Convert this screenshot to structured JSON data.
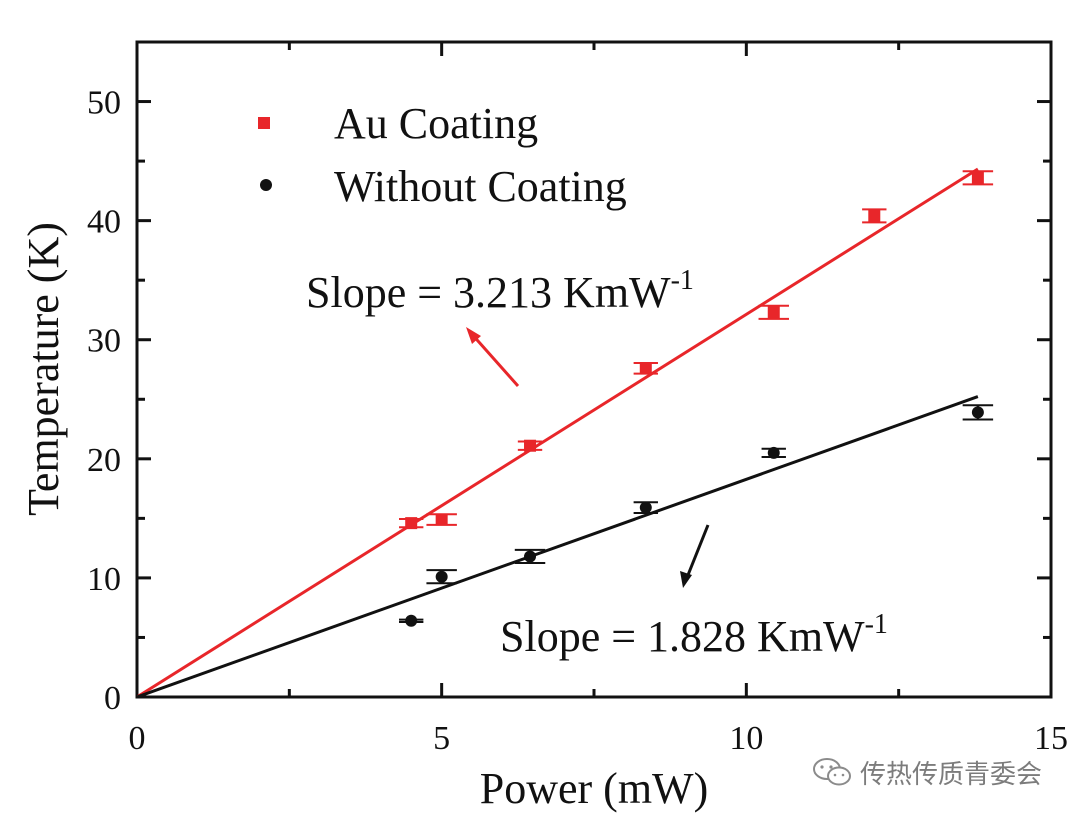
{
  "chart_data": {
    "type": "scatter",
    "xlabel": "Power (mW)",
    "ylabel": "Temperature (K)",
    "xlim": [
      0,
      15
    ],
    "ylim": [
      0,
      55
    ],
    "xticks": [
      0,
      5,
      10,
      15
    ],
    "yticks": [
      0,
      10,
      20,
      30,
      40,
      50
    ],
    "grid": false,
    "legend_position": "top-left",
    "series": [
      {
        "name": "Au Coating",
        "color": "#e8262a",
        "marker": "square",
        "x": [
          4.5,
          5.0,
          6.45,
          8.35,
          10.45,
          12.1,
          13.8
        ],
        "y": [
          14.6,
          14.9,
          21.1,
          27.6,
          32.3,
          40.4,
          43.6
        ],
        "err_x": [
          0.2,
          0.25,
          0.2,
          0.2,
          0.25,
          0.2,
          0.25
        ],
        "err_y": [
          0.35,
          0.45,
          0.35,
          0.45,
          0.55,
          0.55,
          0.55
        ],
        "fit": {
          "slope": 3.213,
          "x_end": 13.8
        }
      },
      {
        "name": "Without Coating",
        "color": "#111111",
        "marker": "circle",
        "x": [
          4.5,
          5.0,
          6.45,
          8.35,
          10.45,
          13.8
        ],
        "y": [
          6.4,
          10.1,
          11.8,
          15.9,
          20.5,
          23.9
        ],
        "err_x": [
          0.2,
          0.25,
          0.25,
          0.2,
          0.2,
          0.25
        ],
        "err_y": [
          0.1,
          0.55,
          0.55,
          0.45,
          0.35,
          0.6
        ],
        "fit": {
          "slope": 1.828,
          "x_end": 13.8
        }
      }
    ],
    "annotations": [
      {
        "text": "Slope = 3.213 KmW",
        "sup": "-1",
        "series": "Au Coating"
      },
      {
        "text": "Slope = 1.828 KmW",
        "sup": "-1",
        "series": "Without Coating"
      }
    ]
  },
  "watermark": {
    "text": "传热传质青委会",
    "icon": "wechat-icon"
  }
}
